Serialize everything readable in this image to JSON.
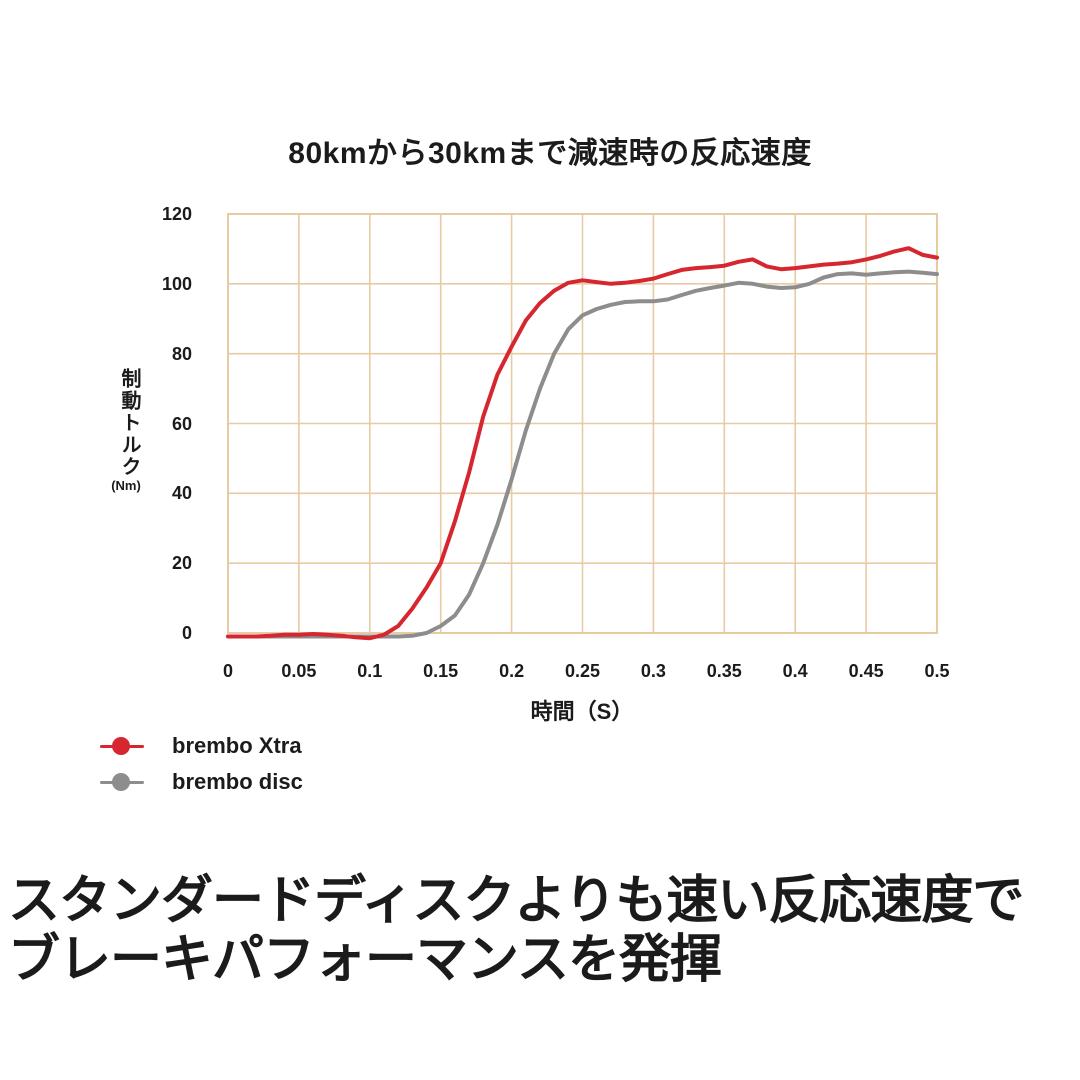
{
  "title": "80kmから30kmまで減速時の反応速度",
  "caption": {
    "line1": "スタンダードディスクよりも速い反応速度で",
    "line2": "ブレーキパフォーマンスを発揮"
  },
  "colors": {
    "xtra_red": "#d62730",
    "disc_gray": "#8d8d8d",
    "grid": "#e7cba3",
    "text": "#1b1b1b",
    "background": "#ffffff"
  },
  "chart_data": {
    "type": "line",
    "title": "80kmから30kmまで減速時の反応速度",
    "xlabel": "時間（S）",
    "ylabel": "制動トルク",
    "ylabel_unit": "(Nm)",
    "xlim": [
      0,
      0.5
    ],
    "ylim": [
      0,
      120
    ],
    "grid": true,
    "legend_position": "bottom-left",
    "x_ticks": [
      0,
      0.05,
      0.1,
      0.15,
      0.2,
      0.25,
      0.3,
      0.35,
      0.4,
      0.45,
      0.5
    ],
    "x_tick_labels": [
      "0",
      "0.05",
      "0.1",
      "0.15",
      "0.2",
      "0.25",
      "0.3",
      "0.35",
      "0.4",
      "0.45",
      "0.5"
    ],
    "y_ticks": [
      0,
      20,
      40,
      60,
      80,
      100,
      120
    ],
    "y_tick_labels": [
      "0",
      "20",
      "40",
      "60",
      "80",
      "100",
      "120"
    ],
    "x": [
      0,
      0.01,
      0.02,
      0.03,
      0.04,
      0.05,
      0.06,
      0.07,
      0.08,
      0.09,
      0.1,
      0.11,
      0.12,
      0.13,
      0.14,
      0.15,
      0.16,
      0.17,
      0.18,
      0.19,
      0.2,
      0.21,
      0.22,
      0.23,
      0.24,
      0.25,
      0.26,
      0.27,
      0.28,
      0.29,
      0.3,
      0.31,
      0.32,
      0.33,
      0.34,
      0.35,
      0.36,
      0.37,
      0.38,
      0.39,
      0.4,
      0.41,
      0.42,
      0.43,
      0.44,
      0.45,
      0.46,
      0.47,
      0.48,
      0.49,
      0.5
    ],
    "series": [
      {
        "name": "brembo Xtra",
        "color": "#d62730",
        "values": [
          -1,
          -1,
          -1,
          -0.8,
          -0.5,
          -0.5,
          -0.3,
          -0.5,
          -0.8,
          -1.2,
          -1.5,
          -0.5,
          2,
          7,
          13,
          20,
          32,
          46,
          62,
          74,
          82,
          89.5,
          94.5,
          98,
          100.3,
          101,
          100.5,
          100,
          100.3,
          100.8,
          101.5,
          102.8,
          104,
          104.5,
          104.8,
          105.2,
          106.3,
          107,
          105,
          104.2,
          104.5,
          105,
          105.5,
          105.8,
          106.2,
          107,
          108,
          109.3,
          110.2,
          108.3,
          107.5
        ]
      },
      {
        "name": "brembo disc",
        "color": "#8d8d8d",
        "values": [
          -1,
          -1,
          -1,
          -1,
          -1,
          -1,
          -1,
          -1,
          -1,
          -1,
          -1,
          -1,
          -1,
          -0.8,
          0,
          2,
          5,
          11,
          20,
          31,
          44,
          58,
          70,
          80,
          87,
          91,
          92.8,
          94,
          94.8,
          95,
          95,
          95.5,
          96.8,
          98,
          98.8,
          99.5,
          100.3,
          100,
          99.2,
          98.8,
          99,
          100,
          101.8,
          102.8,
          103,
          102.6,
          103,
          103.3,
          103.5,
          103.2,
          102.8
        ]
      }
    ]
  }
}
